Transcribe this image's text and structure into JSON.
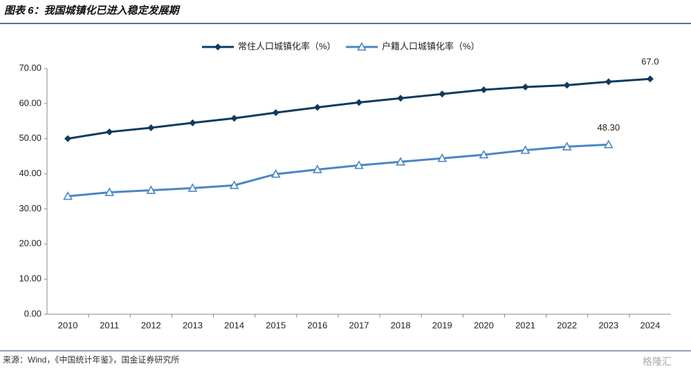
{
  "chart_data": {
    "type": "line",
    "title": "图表 6：我国城镇化已进入稳定发展期",
    "source": "来源：Wind，《中国统计年鉴》，国金证券研究所",
    "watermark": "格隆汇",
    "categories": [
      "2010",
      "2011",
      "2012",
      "2013",
      "2014",
      "2015",
      "2016",
      "2017",
      "2018",
      "2019",
      "2020",
      "2021",
      "2022",
      "2023",
      "2024"
    ],
    "series": [
      {
        "name": "常住人口城镇化率（%）",
        "color": "#0e3a5e",
        "marker": "diamond",
        "values": [
          50.0,
          51.9,
          53.1,
          54.5,
          55.8,
          57.4,
          58.9,
          60.3,
          61.5,
          62.7,
          63.9,
          64.7,
          65.2,
          66.2,
          67.0
        ],
        "value_labels": [
          null,
          null,
          null,
          null,
          null,
          null,
          null,
          null,
          null,
          null,
          null,
          null,
          null,
          null,
          "67.0"
        ]
      },
      {
        "name": "户籍人口城镇化率（%）",
        "color": "#4a86c5",
        "marker": "triangle",
        "values": [
          33.6,
          34.7,
          35.3,
          35.9,
          36.7,
          39.9,
          41.2,
          42.4,
          43.4,
          44.4,
          45.4,
          46.7,
          47.7,
          48.3,
          null
        ],
        "value_labels": [
          null,
          null,
          null,
          null,
          null,
          null,
          null,
          null,
          null,
          null,
          null,
          null,
          null,
          "48.30",
          null
        ]
      }
    ],
    "ylim": [
      0,
      70
    ],
    "yticks": [
      {
        "value": 0,
        "label": "0.00"
      },
      {
        "value": 10,
        "label": "10.00"
      },
      {
        "value": 20,
        "label": "20.00"
      },
      {
        "value": 30,
        "label": "30.00"
      },
      {
        "value": 40,
        "label": "40.00"
      },
      {
        "value": 50,
        "label": "50.00"
      },
      {
        "value": 60,
        "label": "60.00"
      },
      {
        "value": 70,
        "label": "70.00"
      }
    ],
    "grid": false,
    "legend": "top"
  }
}
